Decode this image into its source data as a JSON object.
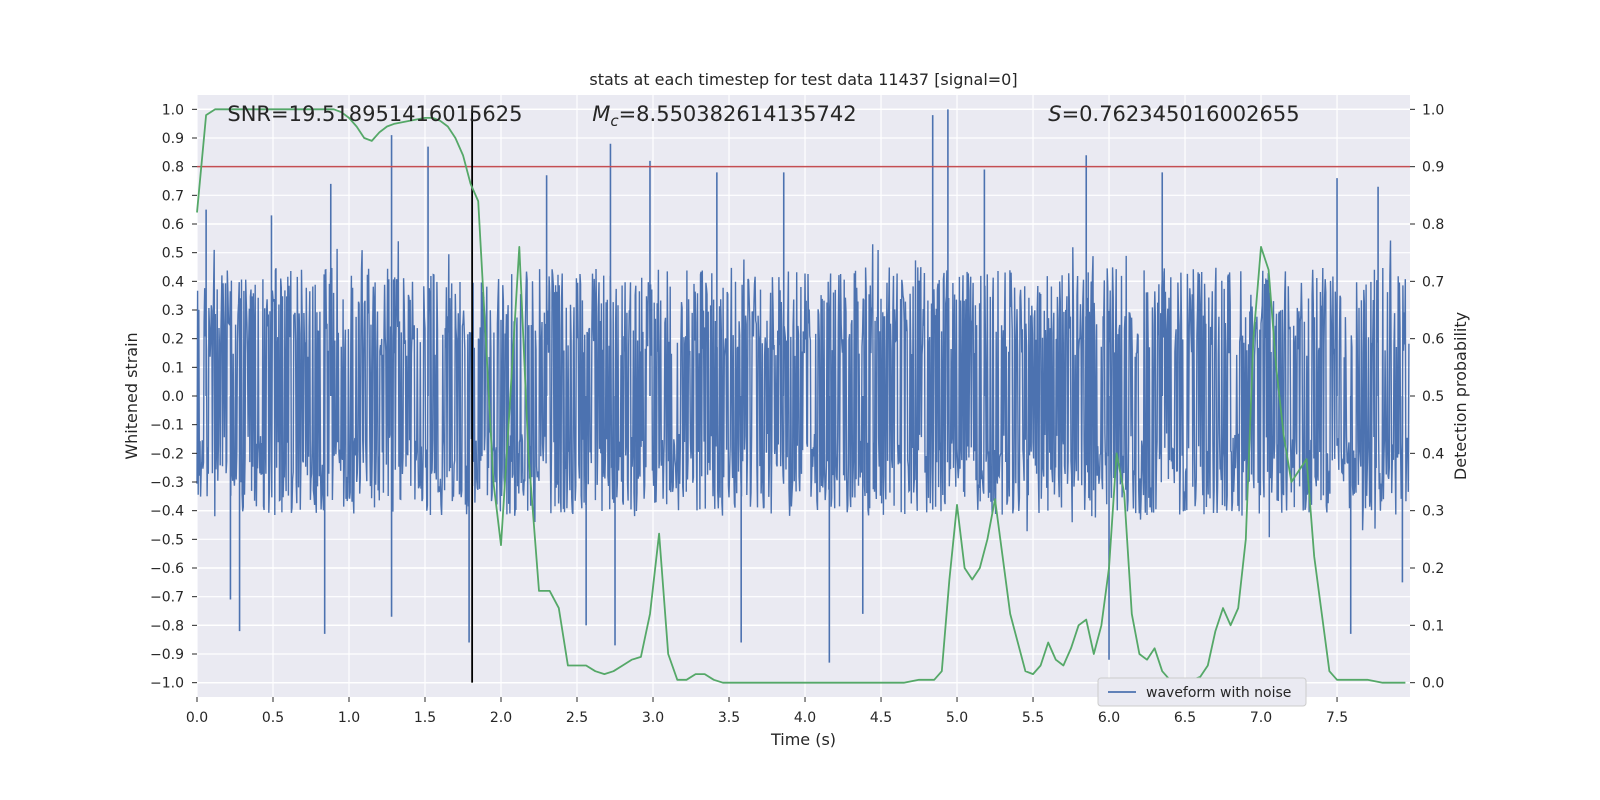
{
  "chart_data": {
    "type": "line",
    "title": "stats at each timestep for test data 11437 [signal=0]",
    "xlabel": "Time (s)",
    "ylabel": "Whitened strain",
    "y2label": "Detection probability",
    "xlim": [
      0.0,
      7.98
    ],
    "ylim": [
      -1.05,
      1.05
    ],
    "y2lim": [
      -0.025,
      1.025
    ],
    "x_ticks": [
      0.0,
      0.5,
      1.0,
      1.5,
      2.0,
      2.5,
      3.0,
      3.5,
      4.0,
      4.5,
      5.0,
      5.5,
      6.0,
      6.5,
      7.0,
      7.5
    ],
    "x_tick_labels": [
      "0.0",
      "0.5",
      "1.0",
      "1.5",
      "2.0",
      "2.5",
      "3.0",
      "3.5",
      "4.0",
      "4.5",
      "5.0",
      "5.5",
      "6.0",
      "6.5",
      "7.0",
      "7.5"
    ],
    "y_ticks": [
      1.0,
      0.9,
      0.8,
      0.7,
      0.6,
      0.5,
      0.4,
      0.3,
      0.2,
      0.1,
      0.0,
      -0.1,
      -0.2,
      -0.3,
      -0.4,
      -0.5,
      -0.6,
      -0.7,
      -0.8,
      -0.9,
      -1.0
    ],
    "y_tick_labels": [
      "1.0",
      "0.9",
      "0.8",
      "0.7",
      "0.6",
      "0.5",
      "0.4",
      "0.3",
      "0.2",
      "0.1",
      "0.0",
      "−0.1",
      "−0.2",
      "−0.3",
      "−0.4",
      "−0.5",
      "−0.6",
      "−0.7",
      "−0.8",
      "−0.9",
      "−1.0"
    ],
    "y2_ticks": [
      1.0,
      0.9,
      0.8,
      0.7,
      0.6,
      0.5,
      0.4,
      0.3,
      0.2,
      0.1,
      0.0
    ],
    "y2_tick_labels": [
      "1.0",
      "0.9",
      "0.8",
      "0.7",
      "0.6",
      "0.5",
      "0.4",
      "0.3",
      "0.2",
      "0.1",
      "0.0"
    ],
    "grid": true,
    "annotations": [
      {
        "text": "SNR=19.518951416015625",
        "x": 0.2
      },
      {
        "text": "M_c=8.550382614135742",
        "x": 2.6
      },
      {
        "text": "S=0.762345016002655",
        "x": 5.6
      }
    ],
    "threshold": {
      "axis": "y2",
      "value": 0.9,
      "color": "#c44e52"
    },
    "vline": {
      "x": 1.81,
      "color": "#000000"
    },
    "legend": {
      "placement": "lower-right",
      "entries": [
        "waveform with noise"
      ]
    },
    "waveform": {
      "name": "waveform with noise",
      "color": "#4c72b0",
      "sample_rate_hz": 256,
      "typical_range": [
        -0.42,
        0.45
      ],
      "spikes": [
        {
          "x": 0.06,
          "y": 0.65
        },
        {
          "x": 0.22,
          "y": -0.71
        },
        {
          "x": 0.28,
          "y": -0.82
        },
        {
          "x": 0.49,
          "y": 0.63
        },
        {
          "x": 0.88,
          "y": 0.74
        },
        {
          "x": 0.84,
          "y": -0.83
        },
        {
          "x": 1.28,
          "y": 0.91
        },
        {
          "x": 1.28,
          "y": -0.77
        },
        {
          "x": 1.52,
          "y": 0.87
        },
        {
          "x": 1.79,
          "y": -0.86
        },
        {
          "x": 2.3,
          "y": 0.77
        },
        {
          "x": 2.56,
          "y": -0.8
        },
        {
          "x": 2.72,
          "y": 0.88
        },
        {
          "x": 2.75,
          "y": -0.87
        },
        {
          "x": 2.98,
          "y": 0.82
        },
        {
          "x": 3.42,
          "y": 0.78
        },
        {
          "x": 3.58,
          "y": -0.86
        },
        {
          "x": 3.86,
          "y": 0.78
        },
        {
          "x": 4.16,
          "y": -0.93
        },
        {
          "x": 4.38,
          "y": -0.76
        },
        {
          "x": 4.84,
          "y": 0.98
        },
        {
          "x": 4.94,
          "y": 1.0
        },
        {
          "x": 5.18,
          "y": 0.79
        },
        {
          "x": 5.85,
          "y": 0.84
        },
        {
          "x": 6.0,
          "y": -0.92
        },
        {
          "x": 6.35,
          "y": 0.78
        },
        {
          "x": 7.5,
          "y": 0.76
        },
        {
          "x": 7.59,
          "y": -0.83
        },
        {
          "x": 7.77,
          "y": 0.73
        },
        {
          "x": 7.93,
          "y": -0.65
        }
      ]
    },
    "series": [
      {
        "name": "",
        "axis": "y2",
        "color": "#55a868",
        "x": [
          0.0,
          0.06,
          0.12,
          0.2,
          0.3,
          0.4,
          0.5,
          0.6,
          0.7,
          0.8,
          0.9,
          0.95,
          1.0,
          1.05,
          1.1,
          1.15,
          1.2,
          1.25,
          1.3,
          1.4,
          1.5,
          1.55,
          1.6,
          1.65,
          1.7,
          1.75,
          1.8,
          1.85,
          1.9,
          1.95,
          2.0,
          2.05,
          2.12,
          2.18,
          2.25,
          2.32,
          2.38,
          2.44,
          2.5,
          2.56,
          2.62,
          2.68,
          2.74,
          2.8,
          2.86,
          2.92,
          2.98,
          3.04,
          3.1,
          3.16,
          3.22,
          3.28,
          3.34,
          3.4,
          3.46,
          3.55,
          3.65,
          3.75,
          3.85,
          3.95,
          4.05,
          4.15,
          4.25,
          4.35,
          4.5,
          4.65,
          4.75,
          4.85,
          4.9,
          4.95,
          5.0,
          5.05,
          5.1,
          5.15,
          5.2,
          5.25,
          5.3,
          5.35,
          5.4,
          5.45,
          5.5,
          5.55,
          5.6,
          5.65,
          5.7,
          5.75,
          5.8,
          5.85,
          5.9,
          5.95,
          6.0,
          6.05,
          6.1,
          6.15,
          6.2,
          6.25,
          6.3,
          6.35,
          6.4,
          6.45,
          6.5,
          6.55,
          6.6,
          6.65,
          6.7,
          6.75,
          6.8,
          6.85,
          6.9,
          6.95,
          7.0,
          7.05,
          7.1,
          7.15,
          7.2,
          7.25,
          7.3,
          7.35,
          7.4,
          7.45,
          7.5,
          7.55,
          7.6,
          7.7,
          7.8,
          7.9,
          7.95
        ],
        "values": [
          0.82,
          0.99,
          1.0,
          1.0,
          1.0,
          1.0,
          1.0,
          1.0,
          1.0,
          1.0,
          1.0,
          0.995,
          0.985,
          0.97,
          0.95,
          0.945,
          0.96,
          0.97,
          0.975,
          0.98,
          0.985,
          0.985,
          0.98,
          0.97,
          0.95,
          0.92,
          0.87,
          0.84,
          0.6,
          0.35,
          0.24,
          0.45,
          0.76,
          0.4,
          0.16,
          0.16,
          0.13,
          0.03,
          0.03,
          0.03,
          0.02,
          0.015,
          0.02,
          0.03,
          0.04,
          0.045,
          0.12,
          0.26,
          0.05,
          0.005,
          0.005,
          0.015,
          0.015,
          0.005,
          0.0,
          0.0,
          0.0,
          0.0,
          0.0,
          0.0,
          0.0,
          0.0,
          0.0,
          0.0,
          0.0,
          0.0,
          0.005,
          0.005,
          0.02,
          0.18,
          0.31,
          0.2,
          0.18,
          0.2,
          0.25,
          0.32,
          0.22,
          0.12,
          0.07,
          0.02,
          0.015,
          0.03,
          0.07,
          0.04,
          0.03,
          0.06,
          0.1,
          0.11,
          0.05,
          0.1,
          0.2,
          0.4,
          0.33,
          0.12,
          0.05,
          0.04,
          0.06,
          0.02,
          0.005,
          0.0,
          0.0,
          0.005,
          0.01,
          0.03,
          0.09,
          0.13,
          0.1,
          0.13,
          0.25,
          0.6,
          0.76,
          0.72,
          0.55,
          0.43,
          0.35,
          0.37,
          0.39,
          0.22,
          0.12,
          0.02,
          0.005,
          0.005,
          0.005,
          0.005,
          0.0,
          0.0,
          0.0
        ]
      }
    ]
  }
}
